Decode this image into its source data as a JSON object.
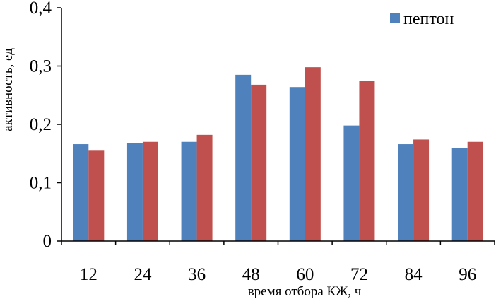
{
  "chart_data": {
    "type": "bar",
    "categories": [
      "12",
      "24",
      "36",
      "48",
      "60",
      "72",
      "84",
      "96"
    ],
    "series": [
      {
        "name": "пептон",
        "color": "#4f81bd",
        "values": [
          0.166,
          0.168,
          0.17,
          0.285,
          0.264,
          0.198,
          0.166,
          0.16
        ]
      },
      {
        "color": "#c0504d",
        "values": [
          0.156,
          0.17,
          0.182,
          0.268,
          0.298,
          0.274,
          0.174,
          0.17
        ]
      }
    ],
    "y_tick_labels": [
      "0",
      "0,1",
      "0,2",
      "0,3",
      "0,4"
    ],
    "xlabel": "время отбора КЖ, ч",
    "ylabel": "активность, ед",
    "ylim": [
      0,
      0.4
    ],
    "legend_position": "top-right",
    "grid": false
  }
}
